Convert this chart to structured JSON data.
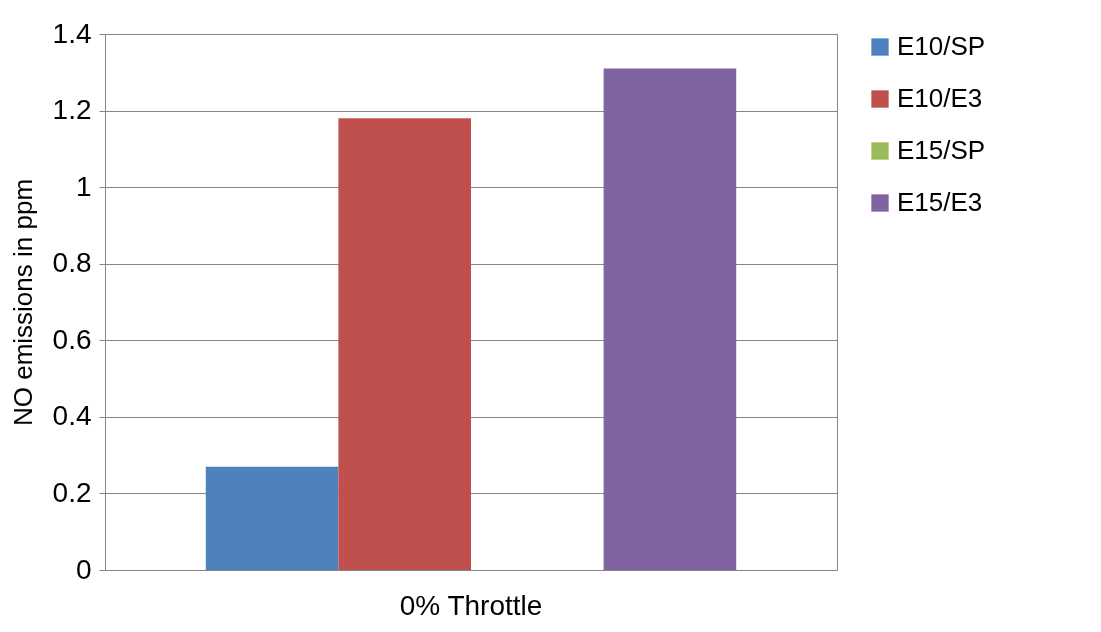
{
  "chart_data": {
    "type": "bar",
    "ylabel": "NO emissions in ppm",
    "categories": [
      "0% Throttle"
    ],
    "series": [
      {
        "name": "E10/SP",
        "color": "#4f81bd",
        "values": [
          0.27
        ]
      },
      {
        "name": "E10/E3",
        "color": "#c0504d",
        "values": [
          1.18
        ]
      },
      {
        "name": "E15/SP",
        "color": "#9bbb59",
        "values": [
          0
        ]
      },
      {
        "name": "E15/E3",
        "color": "#8064a2",
        "values": [
          1.31
        ]
      }
    ],
    "ylim": [
      0,
      1.4
    ],
    "yticks": [
      0,
      0.2,
      0.4,
      0.6,
      0.8,
      1,
      1.2,
      1.4
    ],
    "grid": "y",
    "legend": "right"
  }
}
